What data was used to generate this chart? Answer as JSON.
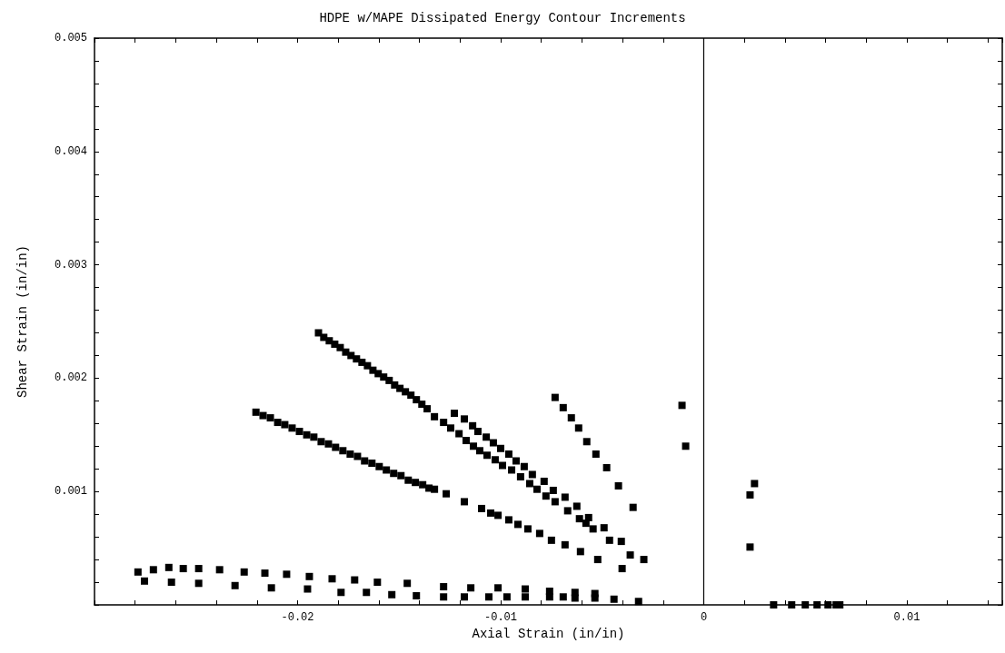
{
  "chart_data": {
    "type": "scatter",
    "title": "HDPE w/MAPE Dissipated Energy Contour Increments",
    "xlabel": "Axial Strain (in/in)",
    "ylabel": "Shear Strain (in/in)",
    "marker": "square",
    "grid": false,
    "xlim": [
      -0.03,
      0.0147
    ],
    "ylim": [
      0,
      0.005
    ],
    "xticks": [
      {
        "value": -0.03,
        "label": null
      },
      {
        "value": -0.028,
        "label": null
      },
      {
        "value": -0.026,
        "label": null
      },
      {
        "value": -0.024,
        "label": null
      },
      {
        "value": -0.022,
        "label": null
      },
      -0.02,
      {
        "value": -0.018,
        "label": null
      },
      {
        "value": -0.016,
        "label": null
      },
      {
        "value": -0.014,
        "label": null
      },
      {
        "value": -0.012,
        "label": null
      },
      -0.01,
      {
        "value": -0.008,
        "label": null
      },
      {
        "value": -0.006,
        "label": null
      },
      {
        "value": -0.004,
        "label": null
      },
      {
        "value": -0.002,
        "label": null
      },
      0,
      {
        "value": 0.002,
        "label": null
      },
      {
        "value": 0.004,
        "label": null
      },
      {
        "value": 0.006,
        "label": null
      },
      {
        "value": 0.008,
        "label": null
      },
      0.01,
      {
        "value": 0.012,
        "label": null
      },
      {
        "value": 0.014,
        "label": null
      }
    ],
    "yticks": [
      {
        "value": 0.0002,
        "label": null
      },
      {
        "value": 0.0004,
        "label": null
      },
      {
        "value": 0.0006,
        "label": null
      },
      {
        "value": 0.0008,
        "label": null
      },
      0.001,
      {
        "value": 0.0012,
        "label": null
      },
      {
        "value": 0.0014,
        "label": null
      },
      {
        "value": 0.0016,
        "label": null
      },
      {
        "value": 0.0018,
        "label": null
      },
      0.002,
      {
        "value": 0.0022,
        "label": null
      },
      {
        "value": 0.0024,
        "label": null
      },
      {
        "value": 0.0026,
        "label": null
      },
      {
        "value": 0.0028,
        "label": null
      },
      0.003,
      {
        "value": 0.0032,
        "label": null
      },
      {
        "value": 0.0034,
        "label": null
      },
      {
        "value": 0.0036,
        "label": null
      },
      {
        "value": 0.0038,
        "label": null
      },
      0.004,
      {
        "value": 0.0042,
        "label": null
      },
      {
        "value": 0.0044,
        "label": null
      },
      {
        "value": 0.0046,
        "label": null
      },
      {
        "value": 0.0048,
        "label": null
      },
      0.005
    ],
    "ref_lines": [
      {
        "axis": "x",
        "value": 0,
        "color": "#000000",
        "line_style": "solid"
      }
    ],
    "series": [
      {
        "color": "#000000",
        "x": [
          -0.01897,
          -0.01871,
          -0.01844,
          -0.01817,
          -0.0179,
          -0.01763,
          -0.01737,
          -0.0171,
          -0.01683,
          -0.01656,
          -0.01629,
          -0.01603,
          -0.01576,
          -0.01549,
          -0.01522,
          -0.01496,
          -0.01469,
          -0.01442,
          -0.01415,
          -0.01388,
          -0.01362,
          -0.01326,
          -0.01281,
          -0.01246,
          -0.01205,
          -0.0117,
          -0.01134,
          -0.01103,
          -0.01067,
          -0.01027,
          -0.00991,
          -0.00946,
          -0.00902,
          -0.00857,
          -0.00821,
          -0.00777,
          -0.00732,
          -0.0067,
          -0.00612,
          -0.0058,
          -0.00545,
          -0.00464
        ],
        "values": [
          0.0024,
          0.00236,
          0.00233,
          0.0023,
          0.00227,
          0.00223,
          0.0022,
          0.00217,
          0.00214,
          0.00211,
          0.00207,
          0.00204,
          0.00201,
          0.00198,
          0.00194,
          0.00191,
          0.00188,
          0.00185,
          0.00181,
          0.00177,
          0.00173,
          0.00166,
          0.00161,
          0.00156,
          0.00151,
          0.00145,
          0.0014,
          0.00136,
          0.00132,
          0.00128,
          0.00123,
          0.00119,
          0.00113,
          0.00107,
          0.00102,
          0.00096,
          0.00091,
          0.00083,
          0.00076,
          0.00072,
          0.00067,
          0.00057
        ]
      },
      {
        "color": "#000000",
        "x": [
          -0.01228,
          -0.01179,
          -0.01138,
          -0.01112,
          -0.01071,
          -0.01036,
          -0.01,
          -0.0096,
          -0.00924,
          -0.00884,
          -0.00844,
          -0.00786,
          -0.00741,
          -0.00683,
          -0.00625,
          -0.00567,
          -0.00491,
          -0.00406,
          -0.00362,
          -0.00295
        ],
        "values": [
          0.00169,
          0.00164,
          0.00158,
          0.00153,
          0.00148,
          0.00143,
          0.00138,
          0.00133,
          0.00127,
          0.00122,
          0.00115,
          0.00109,
          0.00101,
          0.00095,
          0.00087,
          0.00077,
          0.00068,
          0.00056,
          0.00044,
          0.0004
        ]
      },
      {
        "color": "#000000",
        "x": [
          -0.02205,
          -0.0217,
          -0.02134,
          -0.02098,
          -0.02063,
          -0.02027,
          -0.01991,
          -0.01955,
          -0.0192,
          -0.01884,
          -0.01848,
          -0.01813,
          -0.01777,
          -0.01741,
          -0.01705,
          -0.0167,
          -0.01634,
          -0.01598,
          -0.01563,
          -0.01527,
          -0.01491,
          -0.01455,
          -0.0142,
          -0.01384,
          -0.01353,
          -0.01326,
          -0.01268,
          -0.01179,
          -0.01094,
          -0.01049,
          -0.01013,
          -0.0096,
          -0.00915,
          -0.00866,
          -0.00808,
          -0.0075,
          -0.00683,
          -0.00607,
          -0.00522,
          -0.00402
        ],
        "values": [
          0.0017,
          0.00167,
          0.00165,
          0.00161,
          0.00159,
          0.00156,
          0.00153,
          0.0015,
          0.00148,
          0.00144,
          0.00142,
          0.00139,
          0.00136,
          0.00133,
          0.00131,
          0.00127,
          0.00125,
          0.00122,
          0.00119,
          0.00116,
          0.00114,
          0.0011,
          0.00108,
          0.00106,
          0.00103,
          0.00102,
          0.00098,
          0.00091,
          0.00085,
          0.00081,
          0.00079,
          0.00075,
          0.00071,
          0.00067,
          0.00063,
          0.00057,
          0.00053,
          0.00047,
          0.0004,
          0.00032
        ]
      },
      {
        "color": "#000000",
        "x": [
          -0.00732,
          -0.00692,
          -0.00652,
          -0.00616,
          -0.00576,
          -0.00531,
          -0.00478,
          -0.0042,
          -0.00348
        ],
        "values": [
          0.00183,
          0.00174,
          0.00165,
          0.00156,
          0.00144,
          0.00133,
          0.00121,
          0.00105,
          0.00086
        ]
      },
      {
        "color": "#000000",
        "x": [
          -0.00107,
          -0.00089,
          0.0025,
          0.00228,
          0.00228
        ],
        "values": [
          0.00176,
          0.0014,
          0.00107,
          0.00097,
          0.00051
        ]
      },
      {
        "color": "#000000",
        "x": [
          0.00344,
          0.00433,
          0.005,
          0.00558,
          0.00612,
          0.00652,
          0.0067
        ],
        "values": [
          0,
          0,
          0,
          0,
          0,
          0,
          0
        ]
      },
      {
        "color": "#000000",
        "x": [
          -0.02786,
          -0.0271,
          -0.02634,
          -0.02563,
          -0.02487,
          -0.02384,
          -0.02263,
          -0.02161,
          -0.02054,
          -0.01942,
          -0.0183,
          -0.01719,
          -0.01607,
          -0.0146,
          -0.01281,
          -0.01147,
          -0.01013,
          -0.00879,
          -0.00759,
          -0.00634,
          -0.00536
        ],
        "values": [
          0.00029,
          0.00031,
          0.00033,
          0.00032,
          0.00032,
          0.00031,
          0.00029,
          0.00028,
          0.00027,
          0.00025,
          0.00023,
          0.00022,
          0.0002,
          0.00019,
          0.00016,
          0.00015,
          0.00015,
          0.00014,
          0.00012,
          0.00011,
          0.0001
        ]
      },
      {
        "color": "#000000",
        "x": [
          -0.02754,
          -0.02621,
          -0.02487,
          -0.02308,
          -0.02129,
          -0.01951,
          -0.01786,
          -0.01661,
          -0.01536,
          -0.01415,
          -0.01281,
          -0.01179,
          -0.01058,
          -0.00969,
          -0.00879,
          -0.00759,
          -0.00692,
          -0.00634,
          -0.00536,
          -0.00442,
          -0.00321
        ],
        "values": [
          0.00021,
          0.0002,
          0.00019,
          0.00017,
          0.00015,
          0.00014,
          0.00011,
          0.00011,
          9e-05,
          8e-05,
          7e-05,
          7e-05,
          7e-05,
          7e-05,
          7e-05,
          7e-05,
          7e-05,
          6e-05,
          6e-05,
          5e-05,
          3e-05
        ]
      }
    ]
  }
}
